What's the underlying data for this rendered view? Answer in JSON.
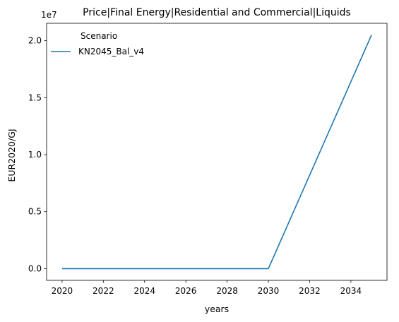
{
  "chart_data": {
    "type": "line",
    "title": "Price|Final Energy|Residential and Commercial|Liquids",
    "xlabel": "years",
    "ylabel": "EUR2020/GJ",
    "y_scale_note": "1e7",
    "xlim": [
      2019.25,
      2035.75
    ],
    "ylim": [
      -0.1025,
      2.1525
    ],
    "x_ticks": [
      2020,
      2022,
      2024,
      2026,
      2028,
      2030,
      2032,
      2034
    ],
    "x_tick_labels": [
      "2020",
      "2022",
      "2024",
      "2026",
      "2028",
      "2030",
      "2032",
      "2034"
    ],
    "y_ticks": [
      0.0,
      0.5,
      1.0,
      1.5,
      2.0
    ],
    "y_tick_labels": [
      "0.0",
      "0.5",
      "1.0",
      "1.5",
      "2.0"
    ],
    "grid": false,
    "legend": {
      "title": "Scenario",
      "placement": "upper-left"
    },
    "series": [
      {
        "name": "KN2045_Bal_v4",
        "color": "#1f77b4",
        "x": [
          2020,
          2025,
          2030,
          2035
        ],
        "y": [
          0.0,
          0.0,
          0.0,
          2.05
        ]
      }
    ]
  }
}
